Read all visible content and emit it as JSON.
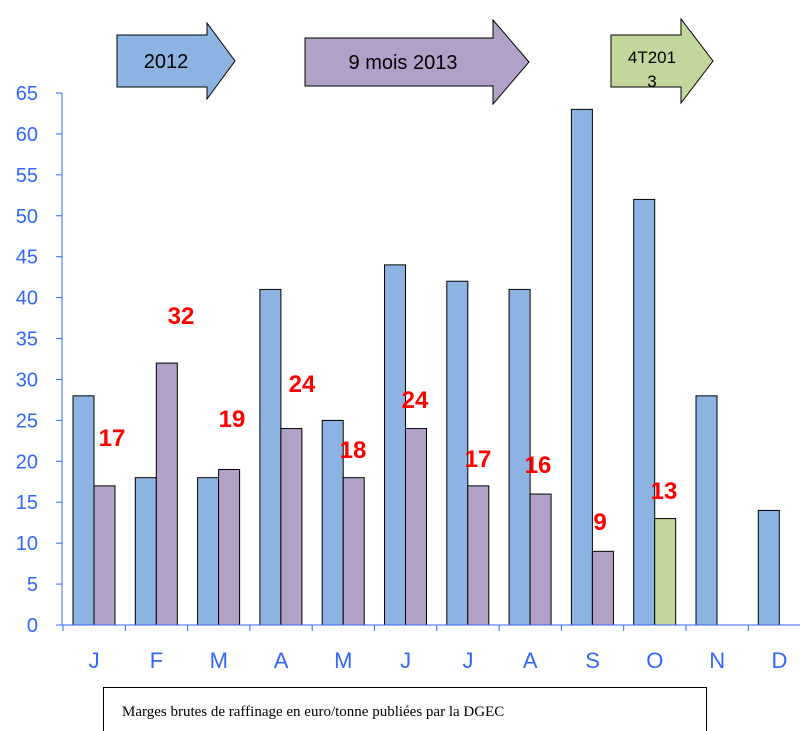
{
  "chart_data": {
    "type": "bar",
    "categories": [
      "J",
      "F",
      "M",
      "A",
      "M",
      "J",
      "J",
      "A",
      "S",
      "O",
      "N",
      "D"
    ],
    "ylim": [
      0,
      65
    ],
    "yticks": [
      0,
      5,
      10,
      15,
      20,
      25,
      30,
      35,
      40,
      45,
      50,
      55,
      60,
      65
    ],
    "series": [
      {
        "name": "2012",
        "color": "#8db3e2",
        "values": [
          28,
          18,
          18,
          41,
          25,
          44,
          42,
          41,
          63,
          52,
          28,
          14
        ]
      },
      {
        "name": "9 mois 2013",
        "color": "#b2a1c7",
        "values": [
          17,
          32,
          19,
          24,
          18,
          24,
          17,
          16,
          9,
          null,
          null,
          null
        ]
      },
      {
        "name": "4T2013",
        "color": "#c3d69b",
        "values": [
          null,
          null,
          null,
          null,
          null,
          null,
          null,
          null,
          null,
          13,
          null,
          null
        ]
      }
    ],
    "data_labels": [
      "17",
      "32",
      "19",
      "24",
      "18",
      "24",
      "17",
      "16",
      "9",
      "13"
    ],
    "period_arrows": [
      "2012",
      "9 mois 2013",
      "4T201\n3"
    ],
    "caption": "Marges brutes de raffinage en euro/tonne publiées par la DGEC",
    "grid": false
  }
}
